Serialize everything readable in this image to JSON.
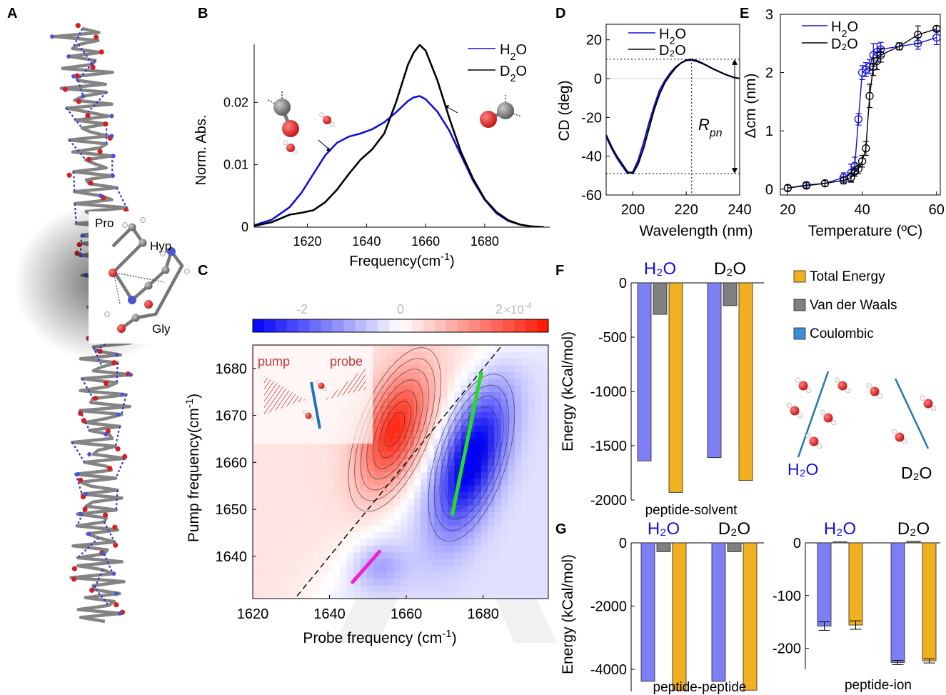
{
  "panel_letters": [
    "A",
    "B",
    "C",
    "D",
    "E",
    "F",
    "G"
  ],
  "colors": {
    "h2o": "#1010e0",
    "d2o": "#000000",
    "coulombic": "#7f7ff5",
    "vdw": "#808080",
    "total": "#f0b020",
    "legend_coulombic": "#3a8fd8",
    "water_o": "#d42020",
    "atom_c": "#888888",
    "bond": "#777777",
    "hbond": "#3030e0",
    "green_line": "#20e020",
    "magenta_line": "#f020d8",
    "blue_marker": "#1f77b4",
    "watermark": "#e6e6e6"
  },
  "panel_a": {
    "residues": [
      "Pro",
      "Hyp",
      "Gly"
    ],
    "icons": [
      "collagen-triple-helix-icon",
      "pro-hyp-gly-residue-icon"
    ]
  },
  "chart_data": [
    {
      "id": "B",
      "type": "line",
      "xlabel": "Frequency(cm",
      "xlabel_sup": "-1",
      "xlabel_end": ")",
      "ylabel": "Norm. Abs.",
      "xlim": [
        1602,
        1702
      ],
      "ylim": [
        0,
        0.0293
      ],
      "xticks": [
        1620,
        1640,
        1660,
        1680
      ],
      "yticks": [
        0,
        0.01,
        0.02
      ],
      "ytick_labels": [
        "0",
        "0.01",
        "0.02"
      ],
      "legend": {
        "placement": "top-right",
        "entries": [
          {
            "label": "H",
            "sub": "2",
            "rest": "O"
          },
          {
            "label": "D",
            "sub": "2",
            "rest": "O"
          }
        ]
      },
      "series": [
        {
          "name": "H2O",
          "color": "#1010e0",
          "x": [
            1602,
            1608,
            1614,
            1618,
            1622,
            1626,
            1630,
            1634,
            1638,
            1642,
            1646,
            1650,
            1654,
            1656,
            1658,
            1660,
            1664,
            1668,
            1672,
            1676,
            1680,
            1684,
            1688,
            1692,
            1696,
            1700
          ],
          "y": [
            0.0003,
            0.0012,
            0.0032,
            0.0055,
            0.0085,
            0.0115,
            0.0135,
            0.0145,
            0.015,
            0.0157,
            0.0168,
            0.0184,
            0.0202,
            0.0208,
            0.021,
            0.0205,
            0.0185,
            0.0155,
            0.0115,
            0.0075,
            0.0044,
            0.0022,
            0.001,
            0.0004,
            0.0001,
            0.0
          ]
        },
        {
          "name": "D2O",
          "color": "#000000",
          "x": [
            1602,
            1608,
            1614,
            1618,
            1622,
            1626,
            1630,
            1634,
            1638,
            1642,
            1646,
            1650,
            1654,
            1656,
            1658,
            1660,
            1664,
            1668,
            1672,
            1676,
            1680,
            1684,
            1688,
            1692,
            1696,
            1700
          ],
          "y": [
            0.0002,
            0.0008,
            0.002,
            0.0023,
            0.0027,
            0.004,
            0.006,
            0.0085,
            0.0108,
            0.0125,
            0.015,
            0.02,
            0.026,
            0.028,
            0.0292,
            0.0283,
            0.0235,
            0.0175,
            0.012,
            0.0078,
            0.0045,
            0.0024,
            0.0011,
            0.0004,
            0.0001,
            0.0
          ]
        }
      ]
    },
    {
      "id": "C",
      "type": "heatmap",
      "xlabel": "Probe frequency (cm",
      "xlabel_sup": "-1",
      "xlabel_end": ")",
      "ylabel": "Pump frequency(cm",
      "ylabel_sup": "-1",
      "ylabel_end": ")",
      "xlim": [
        1620,
        1697
      ],
      "ylim": [
        1631,
        1685
      ],
      "xticks": [
        1620,
        1640,
        1660,
        1680
      ],
      "yticks": [
        1640,
        1650,
        1660,
        1670,
        1680
      ],
      "colorbar": {
        "ticks": [
          -2,
          0,
          2
        ],
        "exponent": "×10",
        "exponent_sup": "-4",
        "range": [
          -3,
          3
        ]
      },
      "positive_peak": {
        "probe": 1657,
        "pump": 1667,
        "amp": 2.4
      },
      "negative_peak": {
        "probe": 1677,
        "pump": 1661,
        "amp": -3.0
      },
      "minor_negative_peak": {
        "probe": 1653,
        "pump": 1638,
        "amp": -0.8
      },
      "diagonal": {
        "from": [
          1630,
          1630
        ],
        "to": [
          1687,
          1687
        ]
      },
      "center_lines": [
        {
          "color": "green",
          "from": [
            1672,
            1649
          ],
          "to": [
            1679.5,
            1679
          ]
        },
        {
          "color": "magenta",
          "from": [
            1646,
            1634.5
          ],
          "to": [
            1653,
            1641
          ]
        }
      ],
      "inset_labels": [
        "pump",
        "probe"
      ]
    },
    {
      "id": "D",
      "type": "line",
      "xlabel": "Wavelength (nm)",
      "ylabel": "CD (deg)",
      "xlim": [
        190,
        240
      ],
      "ylim": [
        -60,
        28
      ],
      "xticks": [
        200,
        220,
        240
      ],
      "yticks": [
        -60,
        -40,
        -20,
        0,
        20
      ],
      "legend": {
        "placement": "top-right",
        "entries": [
          {
            "label": "H",
            "sub": "2",
            "rest": "O"
          },
          {
            "label": "D₂O",
            "sub": "",
            "rest": ""
          }
        ]
      },
      "annotation": {
        "text": "R",
        "sub": "pn",
        "max": 10,
        "min": -49,
        "wavelength": 222
      },
      "series": [
        {
          "name": "H2O",
          "color": "#1010e0",
          "x": [
            190,
            192,
            194,
            196,
            198,
            200,
            202,
            204,
            206,
            208,
            210,
            212,
            214,
            216,
            218,
            220,
            222,
            224,
            226,
            228,
            230,
            232,
            234,
            236,
            238,
            240
          ],
          "y": [
            -30,
            -36,
            -41,
            -45,
            -49,
            -48,
            -42,
            -33,
            -23,
            -14,
            -6,
            -1,
            3,
            6,
            8,
            9.3,
            9.5,
            8.8,
            7.8,
            6.4,
            5,
            3.7,
            2.5,
            1.4,
            0.5,
            0
          ]
        },
        {
          "name": "D2O",
          "color": "#000000",
          "x": [
            190,
            192,
            194,
            196,
            198,
            200,
            202,
            204,
            206,
            208,
            210,
            212,
            214,
            216,
            218,
            220,
            222,
            224,
            226,
            228,
            230,
            232,
            234,
            236,
            238,
            240
          ],
          "y": [
            -29,
            -35,
            -40,
            -44,
            -48,
            -49,
            -44,
            -36,
            -26,
            -16,
            -8,
            -2,
            2,
            5.5,
            8,
            9.6,
            9.9,
            9.2,
            8,
            6.6,
            5.1,
            3.8,
            2.6,
            1.5,
            0.6,
            0
          ]
        }
      ]
    },
    {
      "id": "E",
      "type": "scatter",
      "xlabel": "Temperature (ºC)",
      "ylabel": "Δcm (nm)",
      "xlim": [
        18,
        61
      ],
      "ylim": [
        -0.1,
        3
      ],
      "xticks": [
        20,
        40,
        60
      ],
      "yticks": [
        0,
        1,
        2,
        3
      ],
      "legend": {
        "placement": "top-left",
        "entries": [
          {
            "label": "H",
            "sub": "2",
            "rest": "O"
          },
          {
            "label": "D₂O",
            "sub": "",
            "rest": ""
          }
        ]
      },
      "series": [
        {
          "name": "H2O",
          "color": "#1010e0",
          "x": [
            20,
            25,
            30,
            35,
            37,
            38,
            39,
            40,
            41,
            42,
            43,
            44,
            45,
            50,
            55,
            60
          ],
          "y": [
            0.02,
            0.07,
            0.1,
            0.2,
            0.28,
            0.4,
            1.2,
            2.0,
            2.05,
            2.1,
            2.3,
            2.35,
            2.4,
            2.45,
            2.5,
            2.6
          ],
          "err": [
            0.05,
            0.05,
            0.05,
            0.08,
            0.15,
            0.15,
            0.1,
            0.12,
            0.12,
            0.12,
            0.2,
            0.15,
            0.12,
            0.06,
            0.1,
            0.12
          ]
        },
        {
          "name": "D2O",
          "color": "#000000",
          "x": [
            20,
            25,
            30,
            35,
            37,
            38,
            39,
            40,
            41,
            42,
            43,
            44,
            45,
            50,
            55,
            60
          ],
          "y": [
            0.02,
            0.06,
            0.1,
            0.15,
            0.2,
            0.3,
            0.35,
            0.48,
            0.7,
            1.6,
            2.1,
            2.2,
            2.3,
            2.45,
            2.65,
            2.75
          ],
          "err": [
            0.05,
            0.05,
            0.05,
            0.06,
            0.08,
            0.08,
            0.08,
            0.1,
            0.12,
            0.2,
            0.15,
            0.15,
            0.12,
            0.06,
            0.15,
            0.05
          ]
        }
      ]
    },
    {
      "id": "F",
      "type": "bar",
      "subtitle": "peptide-solvent",
      "ylabel": "Energy (kCal/mol)",
      "ylim": [
        -2000,
        0
      ],
      "yticks": [
        0,
        -500,
        -1000,
        -1500,
        -2000
      ],
      "groups": [
        "H₂O",
        "D₂O"
      ],
      "series": [
        {
          "name": "Coulombic",
          "values": [
            -1640,
            -1610
          ]
        },
        {
          "name": "Van der Waals",
          "values": [
            -290,
            -210
          ]
        },
        {
          "name": "Total Energy",
          "values": [
            -1930,
            -1820
          ]
        }
      ],
      "legend": {
        "placement": "right",
        "entries": [
          "Total Energy",
          "Van der Waals",
          "Coulombic"
        ]
      },
      "inset_labels": [
        "H₂O",
        "D₂O"
      ]
    },
    {
      "id": "G1",
      "type": "bar",
      "subtitle": "peptide-peptide",
      "ylabel": "Energy (kCal/mol)",
      "ylim": [
        -4700,
        0
      ],
      "yticks": [
        0,
        -2000,
        -4000
      ],
      "groups": [
        "H₂O",
        "D₂O"
      ],
      "series": [
        {
          "name": "Coulombic",
          "values": [
            -4380,
            -4380
          ]
        },
        {
          "name": "Van der Waals",
          "values": [
            -280,
            -280
          ]
        },
        {
          "name": "Total Energy",
          "values": [
            -4660,
            -4660
          ]
        }
      ]
    },
    {
      "id": "G2",
      "type": "bar",
      "subtitle": "peptide-ion",
      "ylim": [
        -240,
        0
      ],
      "yticks": [
        0,
        -100,
        -200
      ],
      "groups": [
        "H₂O",
        "D₂O"
      ],
      "series": [
        {
          "name": "Coulombic",
          "values": [
            -158,
            -227
          ],
          "err": [
            8,
            4
          ]
        },
        {
          "name": "Van der Waals",
          "values": [
            2,
            3
          ]
        },
        {
          "name": "Total Energy",
          "values": [
            -156,
            -224
          ],
          "err": [
            8,
            4
          ]
        }
      ]
    }
  ]
}
